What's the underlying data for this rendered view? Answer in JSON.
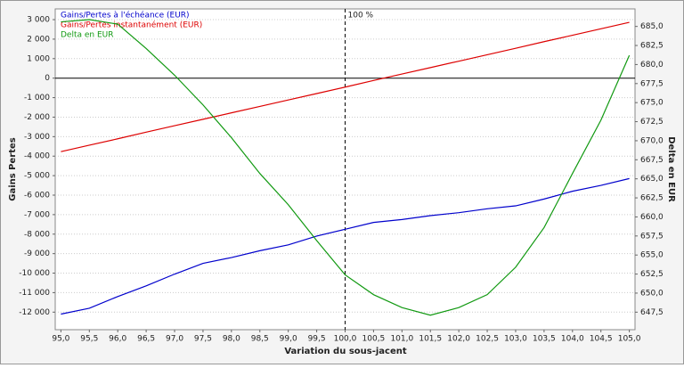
{
  "chart_data": {
    "type": "line",
    "x_label": "Variation du sous-jacent",
    "y_label": "Gains Pertes",
    "y2_label": "Delta en EUR",
    "x": [
      95.0,
      95.5,
      96.0,
      96.5,
      97.0,
      97.5,
      98.0,
      98.5,
      99.0,
      99.5,
      100.0,
      100.5,
      101.0,
      101.5,
      102.0,
      102.5,
      103.0,
      103.5,
      104.0,
      104.5,
      105.0
    ],
    "series": [
      {
        "name": "Gains/Pertes à l'échéance (EUR)",
        "color": "#0000cc",
        "axis": "y",
        "values": [
          -12100,
          -11800,
          -11200,
          -10650,
          -10050,
          -9500,
          -9200,
          -8850,
          -8550,
          -8100,
          -7750,
          -7400,
          -7250,
          -7050,
          -6900,
          -6700,
          -6550,
          -6200,
          -5800,
          -5500,
          -5150
        ]
      },
      {
        "name": "Gains/Pertes instantanément (EUR)",
        "color": "#dd0000",
        "axis": "y",
        "values": [
          -3770,
          -3440,
          -3110,
          -2770,
          -2440,
          -2110,
          -1780,
          -1450,
          -1120,
          -790,
          -460,
          -120,
          210,
          540,
          870,
          1200,
          1530,
          1870,
          2200,
          2530,
          2860
        ]
      },
      {
        "name": "Delta en EUR",
        "color": "#119911",
        "axis": "y2",
        "values": [
          685.6,
          685.9,
          685.3,
          682.1,
          678.6,
          674.7,
          670.4,
          665.7,
          661.6,
          656.9,
          652.4,
          649.8,
          648.1,
          647.1,
          648.1,
          649.8,
          653.4,
          658.6,
          665.7,
          672.7,
          681.2
        ]
      }
    ],
    "annotation": {
      "x": 100,
      "text": "100 %"
    },
    "xlim": [
      94.9,
      105.1
    ],
    "xticks": [
      {
        "value": 95.0,
        "label": "95,0"
      },
      {
        "value": 95.5,
        "label": "95,5"
      },
      {
        "value": 96.0,
        "label": "96,0"
      },
      {
        "value": 96.5,
        "label": "96,5"
      },
      {
        "value": 97.0,
        "label": "97,0"
      },
      {
        "value": 97.5,
        "label": "97,5"
      },
      {
        "value": 98.0,
        "label": "98,0"
      },
      {
        "value": 98.5,
        "label": "98,5"
      },
      {
        "value": 99.0,
        "label": "99,0"
      },
      {
        "value": 99.5,
        "label": "99,5"
      },
      {
        "value": 100.0,
        "label": "100,0"
      },
      {
        "value": 100.5,
        "label": "100,5"
      },
      {
        "value": 101.0,
        "label": "101,0"
      },
      {
        "value": 101.5,
        "label": "101,5"
      },
      {
        "value": 102.0,
        "label": "102,0"
      },
      {
        "value": 102.5,
        "label": "102,5"
      },
      {
        "value": 103.0,
        "label": "103,0"
      },
      {
        "value": 103.5,
        "label": "103,5"
      },
      {
        "value": 104.0,
        "label": "104,0"
      },
      {
        "value": 104.5,
        "label": "104,5"
      },
      {
        "value": 105.0,
        "label": "105,0"
      }
    ],
    "ylim": [
      -12900,
      3550
    ],
    "yticks": [
      {
        "value": 3000,
        "label": "3 000"
      },
      {
        "value": 2000,
        "label": "2 000"
      },
      {
        "value": 1000,
        "label": "1 000"
      },
      0,
      {
        "value": -1000,
        "label": "-1 000"
      },
      {
        "value": -2000,
        "label": "-2 000"
      },
      {
        "value": -3000,
        "label": "-3 000"
      },
      {
        "value": -4000,
        "label": "-4 000"
      },
      {
        "value": -5000,
        "label": "-5 000"
      },
      {
        "value": -6000,
        "label": "-6 000"
      },
      {
        "value": -7000,
        "label": "-7 000"
      },
      {
        "value": -8000,
        "label": "-8 000"
      },
      {
        "value": -9000,
        "label": "-9 000"
      },
      {
        "value": -10000,
        "label": "-10 000"
      },
      {
        "value": -11000,
        "label": "-11 000"
      },
      {
        "value": -12000,
        "label": "-12 000"
      }
    ],
    "y2lim": [
      645.2,
      687.3
    ],
    "y2ticks": [
      {
        "value": 685.0,
        "label": "685,0"
      },
      {
        "value": 682.5,
        "label": "682,5"
      },
      {
        "value": 680.0,
        "label": "680,0"
      },
      {
        "value": 677.5,
        "label": "677,5"
      },
      {
        "value": 675.0,
        "label": "675,0"
      },
      {
        "value": 672.5,
        "label": "672,5"
      },
      {
        "value": 670.0,
        "label": "670,0"
      },
      {
        "value": 667.5,
        "label": "667,5"
      },
      {
        "value": 665.0,
        "label": "665,0"
      },
      {
        "value": 662.5,
        "label": "662,5"
      },
      {
        "value": 660.0,
        "label": "660,0"
      },
      {
        "value": 657.5,
        "label": "657,5"
      },
      {
        "value": 655.0,
        "label": "655,0"
      },
      {
        "value": 652.5,
        "label": "652,5"
      },
      {
        "value": 650.0,
        "label": "650,0"
      },
      {
        "value": 647.5,
        "label": "647,5"
      }
    ],
    "grid": true
  }
}
